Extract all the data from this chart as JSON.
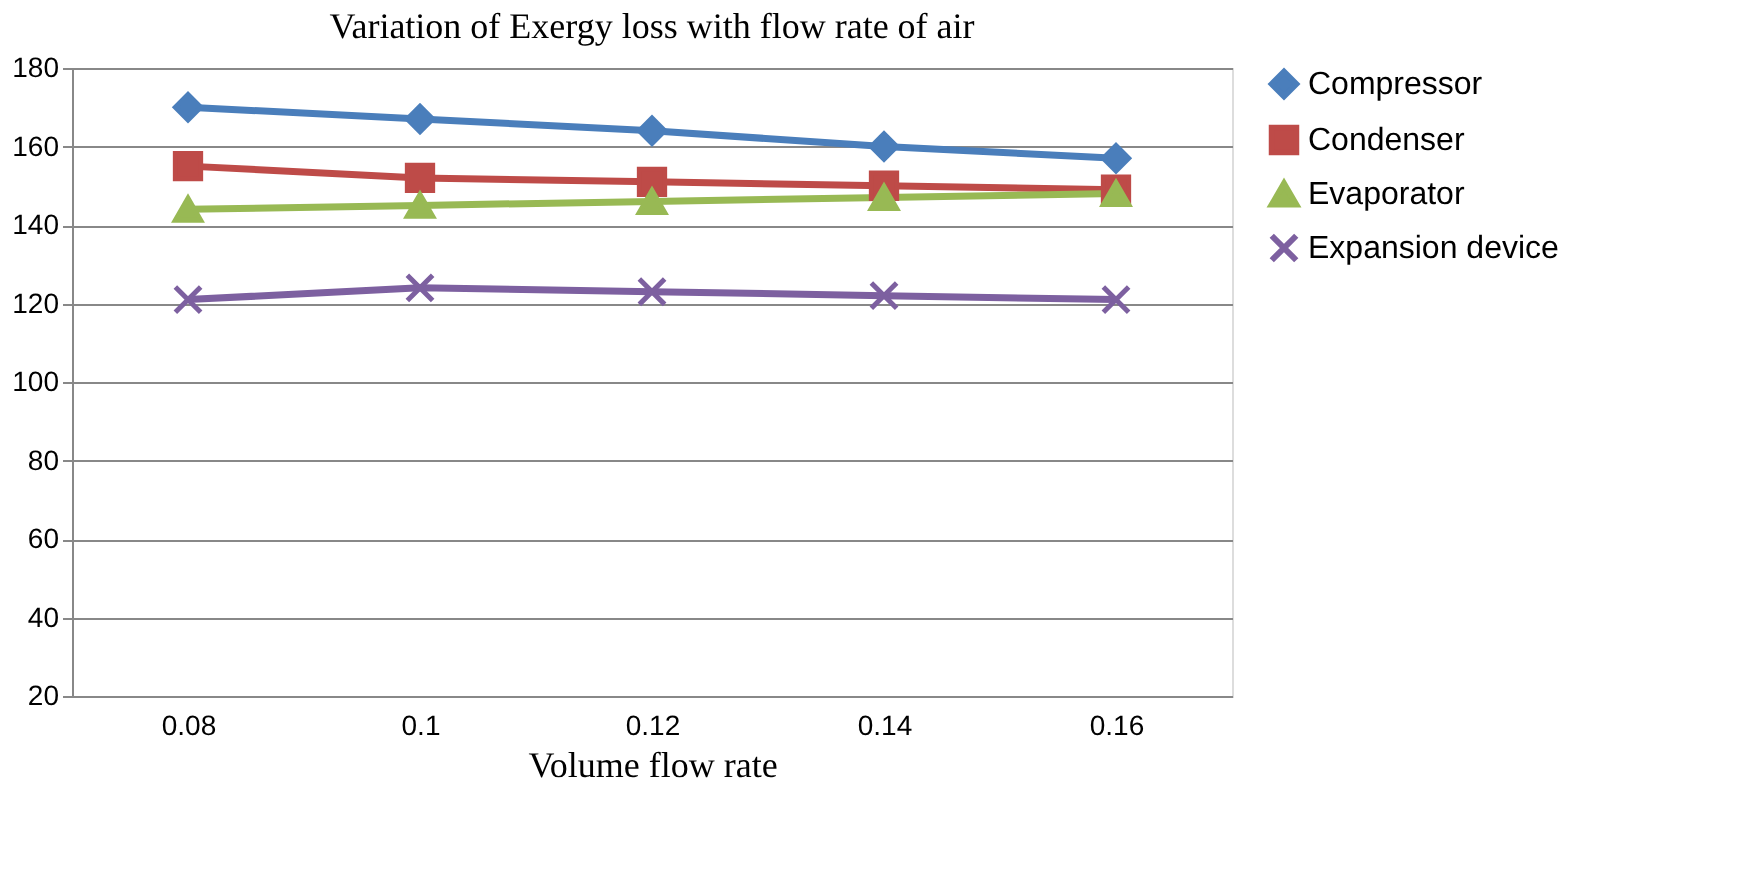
{
  "chart_data": {
    "type": "line",
    "title": "Variation of Exergy loss with flow rate of air",
    "xlabel": "Volume flow rate",
    "categories": [
      "0.08",
      "0.1",
      "0.12",
      "0.14",
      "0.16"
    ],
    "ylim": [
      20,
      180
    ],
    "yticks": [
      20,
      40,
      60,
      80,
      100,
      120,
      140,
      160,
      180
    ],
    "grid": "y",
    "legend": "right",
    "series": [
      {
        "name": "Compressor",
        "color": "#4a7ebb",
        "marker": "diamond",
        "values": [
          170,
          167,
          164,
          160,
          157
        ]
      },
      {
        "name": "Condenser",
        "color": "#be4b48",
        "marker": "square",
        "values": [
          155,
          152,
          151,
          150,
          149
        ]
      },
      {
        "name": "Evaporator",
        "color": "#98b954",
        "marker": "triangle",
        "values": [
          144,
          145,
          146,
          147,
          148
        ]
      },
      {
        "name": "Expansion device",
        "color": "#7d60a0",
        "marker": "cross",
        "values": [
          121,
          124,
          123,
          122,
          121
        ]
      }
    ]
  }
}
